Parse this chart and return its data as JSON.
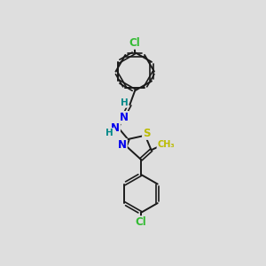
{
  "background_color": "#dedede",
  "bond_color": "#1a1a1a",
  "atom_colors": {
    "N": "#0000ee",
    "S": "#bbbb00",
    "Cl": "#33bb33",
    "H": "#008888",
    "methyl": "#bbbb00"
  },
  "figsize": [
    3.0,
    3.0
  ],
  "dpi": 100
}
